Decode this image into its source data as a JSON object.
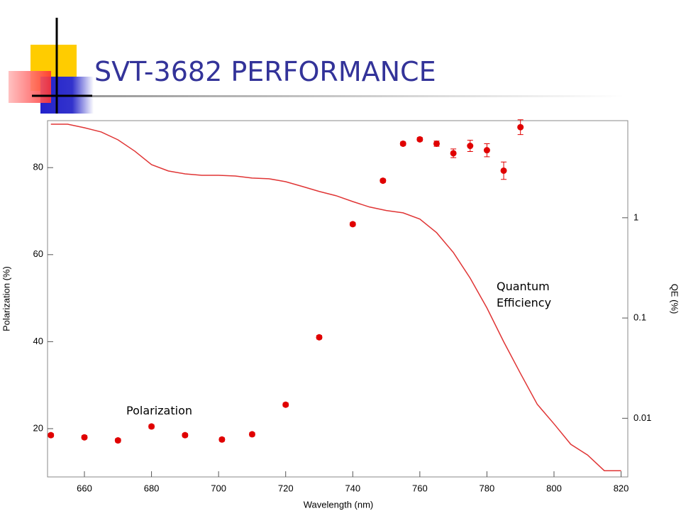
{
  "chart_data": {
    "type": "scatter",
    "title": "SVT-3682 PERFORMANCE",
    "xlabel": "Wavelength (nm)",
    "ylabel": "Polarization (%)",
    "y2label": "QE (%)",
    "xlim": [
      649,
      822
    ],
    "xticks": [
      660,
      680,
      700,
      720,
      740,
      760,
      780,
      800,
      820
    ],
    "ylim": [
      8.9,
      90.8
    ],
    "yticks": [
      20,
      40,
      60,
      80
    ],
    "y2lim": [
      0.0026,
      9.3
    ],
    "y2ticks": [
      0.01,
      0.1,
      1
    ],
    "y2log": true,
    "series": [
      {
        "name": "Polarization",
        "type": "scatter",
        "color": "#e00000",
        "axis": "y",
        "x": [
          650,
          660,
          670,
          680,
          690,
          701,
          710,
          720,
          730,
          740,
          749,
          755,
          760,
          765,
          770,
          775,
          780,
          785,
          790
        ],
        "values": [
          18.5,
          18,
          17.3,
          20.5,
          18.5,
          17.5,
          18.7,
          25.5,
          41,
          67,
          77,
          85.5,
          86.5,
          85.5,
          83.3,
          85,
          84,
          79.3,
          89.3
        ],
        "errors": [
          0.4,
          0.4,
          0.4,
          0.4,
          0.4,
          0.4,
          0.4,
          0.4,
          0.4,
          0.4,
          0.4,
          0.4,
          0.4,
          0.6,
          1,
          1.3,
          1.5,
          2,
          1.7
        ]
      },
      {
        "name": "Quantum Efficiency",
        "type": "line",
        "color": "#e03535",
        "axis": "y2",
        "x": [
          650,
          655,
          660,
          665,
          670,
          675,
          680,
          685,
          690,
          695,
          700,
          705,
          710,
          715,
          720,
          725,
          730,
          735,
          740,
          745,
          750,
          755,
          760,
          765,
          770,
          775,
          780,
          785,
          790,
          795,
          800,
          805,
          810,
          815,
          820
        ],
        "values": [
          8.57,
          8.57,
          7.9,
          7.17,
          5.99,
          4.62,
          3.39,
          2.93,
          2.74,
          2.65,
          2.65,
          2.61,
          2.49,
          2.45,
          2.29,
          2.05,
          1.83,
          1.66,
          1.45,
          1.28,
          1.18,
          1.12,
          0.97,
          0.71,
          0.45,
          0.25,
          0.126,
          0.058,
          0.028,
          0.0138,
          0.0088,
          0.0055,
          0.0043,
          0.003,
          0.003
        ]
      }
    ]
  }
}
